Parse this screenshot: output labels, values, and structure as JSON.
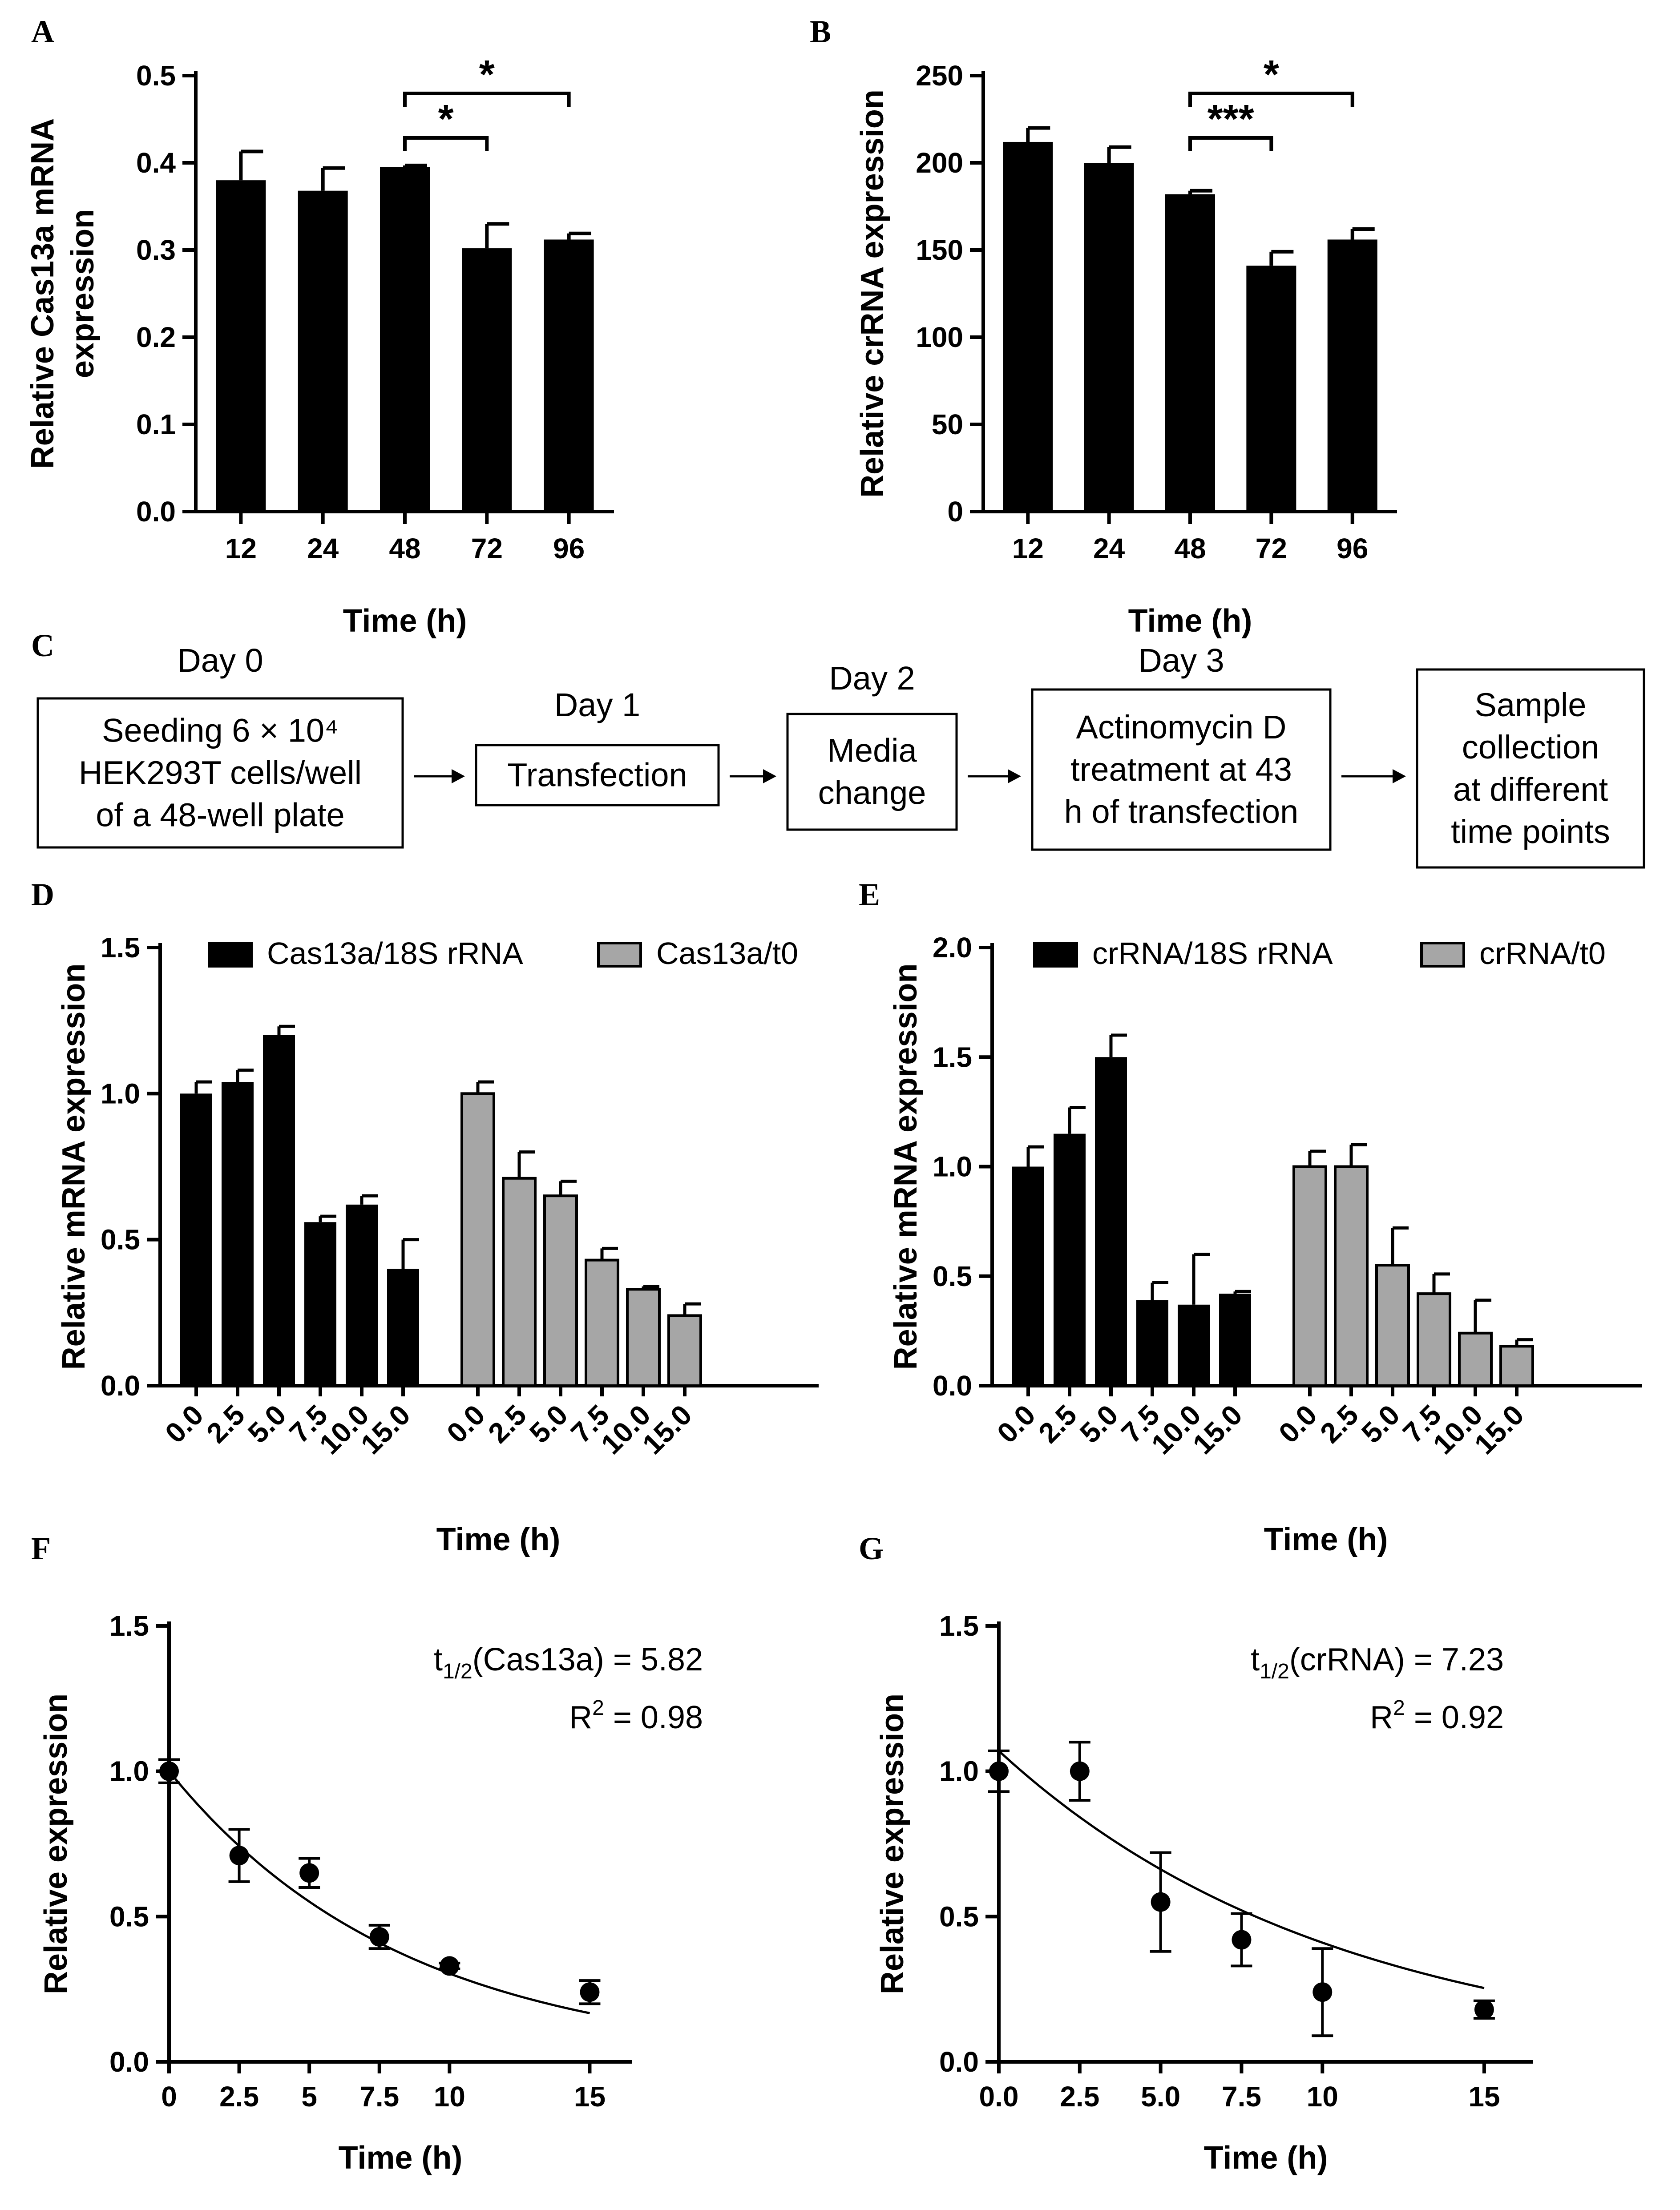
{
  "panels": {
    "A": "A",
    "B": "B",
    "C": "C",
    "D": "D",
    "E": "E",
    "F": "F",
    "G": "G"
  },
  "colors": {
    "black_bar": "#000000",
    "grey_bar": "#a6a6a6"
  },
  "chart_data": [
    {
      "id": "A",
      "type": "bar",
      "categories": [
        "12",
        "24",
        "48",
        "72",
        "96"
      ],
      "values": [
        0.38,
        0.368,
        0.395,
        0.302,
        0.312
      ],
      "errors": [
        0.033,
        0.026,
        0.002,
        0.028,
        0.007
      ],
      "ylabel": "Relative Cas13a mRNA expression",
      "ylabel_lines": [
        "Relative Cas13a mRNA",
        "expression"
      ],
      "xlabel": "Time (h)",
      "ylim": [
        0,
        0.5
      ],
      "yticks": [
        "0.0",
        "0.1",
        "0.2",
        "0.3",
        "0.4",
        "0.5"
      ],
      "significance": [
        {
          "from": "48",
          "to": "72",
          "label": "*"
        },
        {
          "from": "48",
          "to": "96",
          "label": "*"
        }
      ]
    },
    {
      "id": "B",
      "type": "bar",
      "categories": [
        "12",
        "24",
        "48",
        "72",
        "96"
      ],
      "values": [
        212,
        200,
        182,
        141,
        156
      ],
      "errors": [
        8,
        9,
        2,
        8,
        6
      ],
      "ylabel": "Relative crRNA expression",
      "xlabel": "Time (h)",
      "ylim": [
        0,
        250
      ],
      "yticks": [
        "0",
        "50",
        "100",
        "150",
        "200",
        "250"
      ],
      "significance": [
        {
          "from": "48",
          "to": "72",
          "label": "***"
        },
        {
          "from": "48",
          "to": "96",
          "label": "*"
        }
      ]
    },
    {
      "id": "D",
      "type": "bar",
      "categories": [
        "0.0",
        "2.5",
        "5.0",
        "7.5",
        "10.0",
        "15.0"
      ],
      "series": [
        {
          "name": "Cas13a/18S rRNA",
          "values": [
            1.0,
            1.04,
            1.2,
            0.56,
            0.62,
            0.4
          ],
          "errors": [
            0.04,
            0.04,
            0.03,
            0.02,
            0.03,
            0.1
          ]
        },
        {
          "name": "Cas13a/t0",
          "values": [
            1.0,
            0.71,
            0.65,
            0.43,
            0.33,
            0.24
          ],
          "errors": [
            0.04,
            0.09,
            0.05,
            0.04,
            0.01,
            0.04
          ]
        }
      ],
      "ylabel": "Relative mRNA expression",
      "xlabel": "Time (h)",
      "ylim": [
        0,
        1.5
      ],
      "yticks": [
        "0.0",
        "0.5",
        "1.0",
        "1.5"
      ]
    },
    {
      "id": "E",
      "type": "bar",
      "categories": [
        "0.0",
        "2.5",
        "5.0",
        "7.5",
        "10.0",
        "15.0"
      ],
      "series": [
        {
          "name": "crRNA/18S rRNA",
          "values": [
            1.0,
            1.15,
            1.5,
            0.39,
            0.37,
            0.42
          ],
          "errors": [
            0.09,
            0.12,
            0.1,
            0.08,
            0.23,
            0.01
          ]
        },
        {
          "name": "crRNA/t0",
          "values": [
            1.0,
            1.0,
            0.55,
            0.42,
            0.24,
            0.18
          ],
          "errors": [
            0.07,
            0.1,
            0.17,
            0.09,
            0.15,
            0.03
          ]
        }
      ],
      "ylabel": "Relative mRNA expression",
      "xlabel": "Time (h)",
      "ylim": [
        0,
        2.0
      ],
      "yticks": [
        "0.0",
        "0.5",
        "1.0",
        "1.5",
        "2.0"
      ]
    },
    {
      "id": "F",
      "type": "scatter",
      "x": [
        0,
        2.5,
        5,
        7.5,
        10,
        15
      ],
      "y": [
        1.0,
        0.71,
        0.65,
        0.43,
        0.33,
        0.24
      ],
      "errors": [
        0.04,
        0.09,
        0.05,
        0.04,
        0.01,
        0.04
      ],
      "fit": {
        "type": "exponential_decay",
        "y0": 1.0,
        "half_life": 5.82
      },
      "ylabel": "Relative expression",
      "xlabel": "Time (h)",
      "xlim": [
        0,
        16.5
      ],
      "ylim": [
        0,
        1.5
      ],
      "xticks": [
        "0",
        "2.5",
        "5",
        "7.5",
        "10",
        "15"
      ],
      "xtick_values": [
        0,
        2.5,
        5,
        7.5,
        10,
        15
      ],
      "yticks": [
        "0.0",
        "0.5",
        "1.0",
        "1.5"
      ],
      "annotation_lines": [
        "t1/2(Cas13a) = 5.82",
        "R2 = 0.98"
      ]
    },
    {
      "id": "G",
      "type": "scatter",
      "x": [
        0,
        2.5,
        5,
        7.5,
        10,
        15
      ],
      "y": [
        1.0,
        1.0,
        0.55,
        0.42,
        0.24,
        0.18
      ],
      "errors": [
        0.07,
        0.1,
        0.17,
        0.09,
        0.15,
        0.03
      ],
      "fit": {
        "type": "exponential_decay",
        "y0": 1.07,
        "half_life": 7.23
      },
      "ylabel": "Relative expression",
      "xlabel": "Time (h)",
      "xlim": [
        0,
        16.5
      ],
      "ylim": [
        0,
        1.5
      ],
      "xticks": [
        "0.0",
        "2.5",
        "5.0",
        "7.5",
        "10",
        "15"
      ],
      "xtick_values": [
        0,
        2.5,
        5,
        7.5,
        10,
        15
      ],
      "yticks": [
        "0.0",
        "0.5",
        "1.0",
        "1.5"
      ],
      "annotation_lines": [
        "t1/2(crRNA) = 7.23",
        "R2 = 0.92"
      ]
    }
  ],
  "flowchart": {
    "steps": [
      {
        "day": "Day 0",
        "lines": [
          "Seeding 6 × 10⁴",
          "HEK293T cells/well",
          "of a 48-well plate"
        ]
      },
      {
        "day": "Day 1",
        "lines": [
          "Transfection"
        ]
      },
      {
        "day": "Day 2",
        "lines": [
          "Media",
          "change"
        ]
      },
      {
        "day": "Day 3",
        "lines": [
          "Actinomycin D",
          "treatment at 43",
          "h of transfection"
        ]
      },
      {
        "day": "",
        "lines": [
          "Sample",
          "collection",
          "at different",
          "time points"
        ]
      }
    ]
  }
}
